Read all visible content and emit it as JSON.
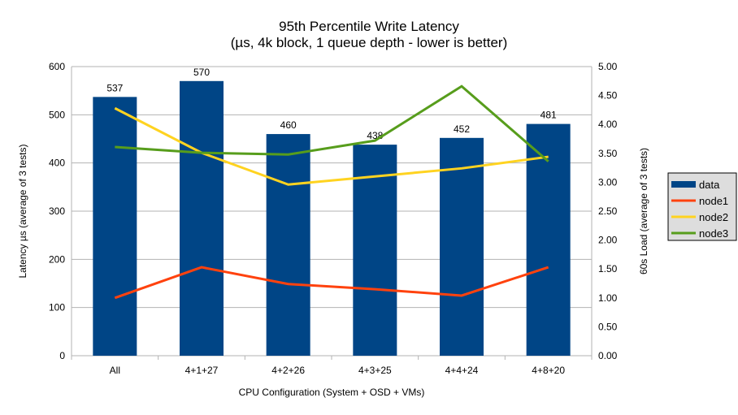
{
  "chart_data": {
    "type": "bar",
    "title": "95th Percentile Write Latency",
    "subtitle": "(µs, 4k block, 1 queue depth - lower is better)",
    "xlabel": "CPU Configuration (System + OSD + VMs)",
    "ylabel": "Latency µs (average of 3 tests)",
    "y2label": "60s Load (average of 3 tests)",
    "categories": [
      "All",
      "4+1+27",
      "4+2+26",
      "4+3+25",
      "4+4+24",
      "4+8+20"
    ],
    "ylim": [
      0,
      600
    ],
    "yticks": [
      "0",
      "100",
      "200",
      "300",
      "400",
      "500",
      "600"
    ],
    "y2lim": [
      0,
      5
    ],
    "y2ticks": [
      "0.00",
      "0.50",
      "1.00",
      "1.50",
      "2.00",
      "2.50",
      "3.00",
      "3.50",
      "4.00",
      "4.50",
      "5.00"
    ],
    "grid": true,
    "legend": "right",
    "series": [
      {
        "name": "data",
        "type": "bar",
        "axis": "left",
        "color": "#004586",
        "values": [
          537,
          570,
          460,
          438,
          452,
          481
        ]
      },
      {
        "name": "node1",
        "type": "line",
        "axis": "right",
        "color": "#ff420e",
        "values": [
          1.0,
          1.53,
          1.24,
          1.15,
          1.04,
          1.53
        ]
      },
      {
        "name": "node2",
        "type": "line",
        "axis": "right",
        "color": "#ffd320",
        "values": [
          4.28,
          3.51,
          2.96,
          3.1,
          3.24,
          3.44
        ]
      },
      {
        "name": "node3",
        "type": "line",
        "axis": "right",
        "color": "#579d1c",
        "values": [
          3.61,
          3.51,
          3.48,
          3.72,
          4.66,
          3.36
        ]
      }
    ]
  }
}
